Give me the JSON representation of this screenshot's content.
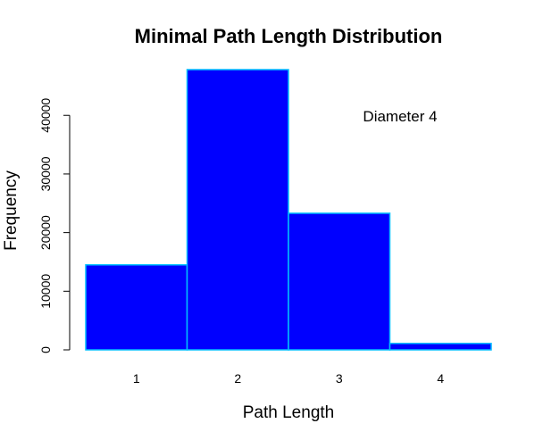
{
  "chart_data": {
    "type": "bar",
    "title": "Minimal Path Length Distribution",
    "xlabel": "Path Length",
    "ylabel": "Frequency",
    "categories": [
      "1",
      "2",
      "3",
      "4"
    ],
    "values": [
      14500,
      47800,
      23300,
      1100
    ],
    "ylim": [
      0,
      47800
    ],
    "yticks": [
      0,
      10000,
      20000,
      30000,
      40000
    ],
    "ytick_labels": [
      "0",
      "10000",
      "20000",
      "30000",
      "40000"
    ],
    "annotation": "Diameter  4",
    "grid": false,
    "legend": "none",
    "colors": {
      "fill": "#0000ff",
      "edge": "#00bfff"
    }
  }
}
